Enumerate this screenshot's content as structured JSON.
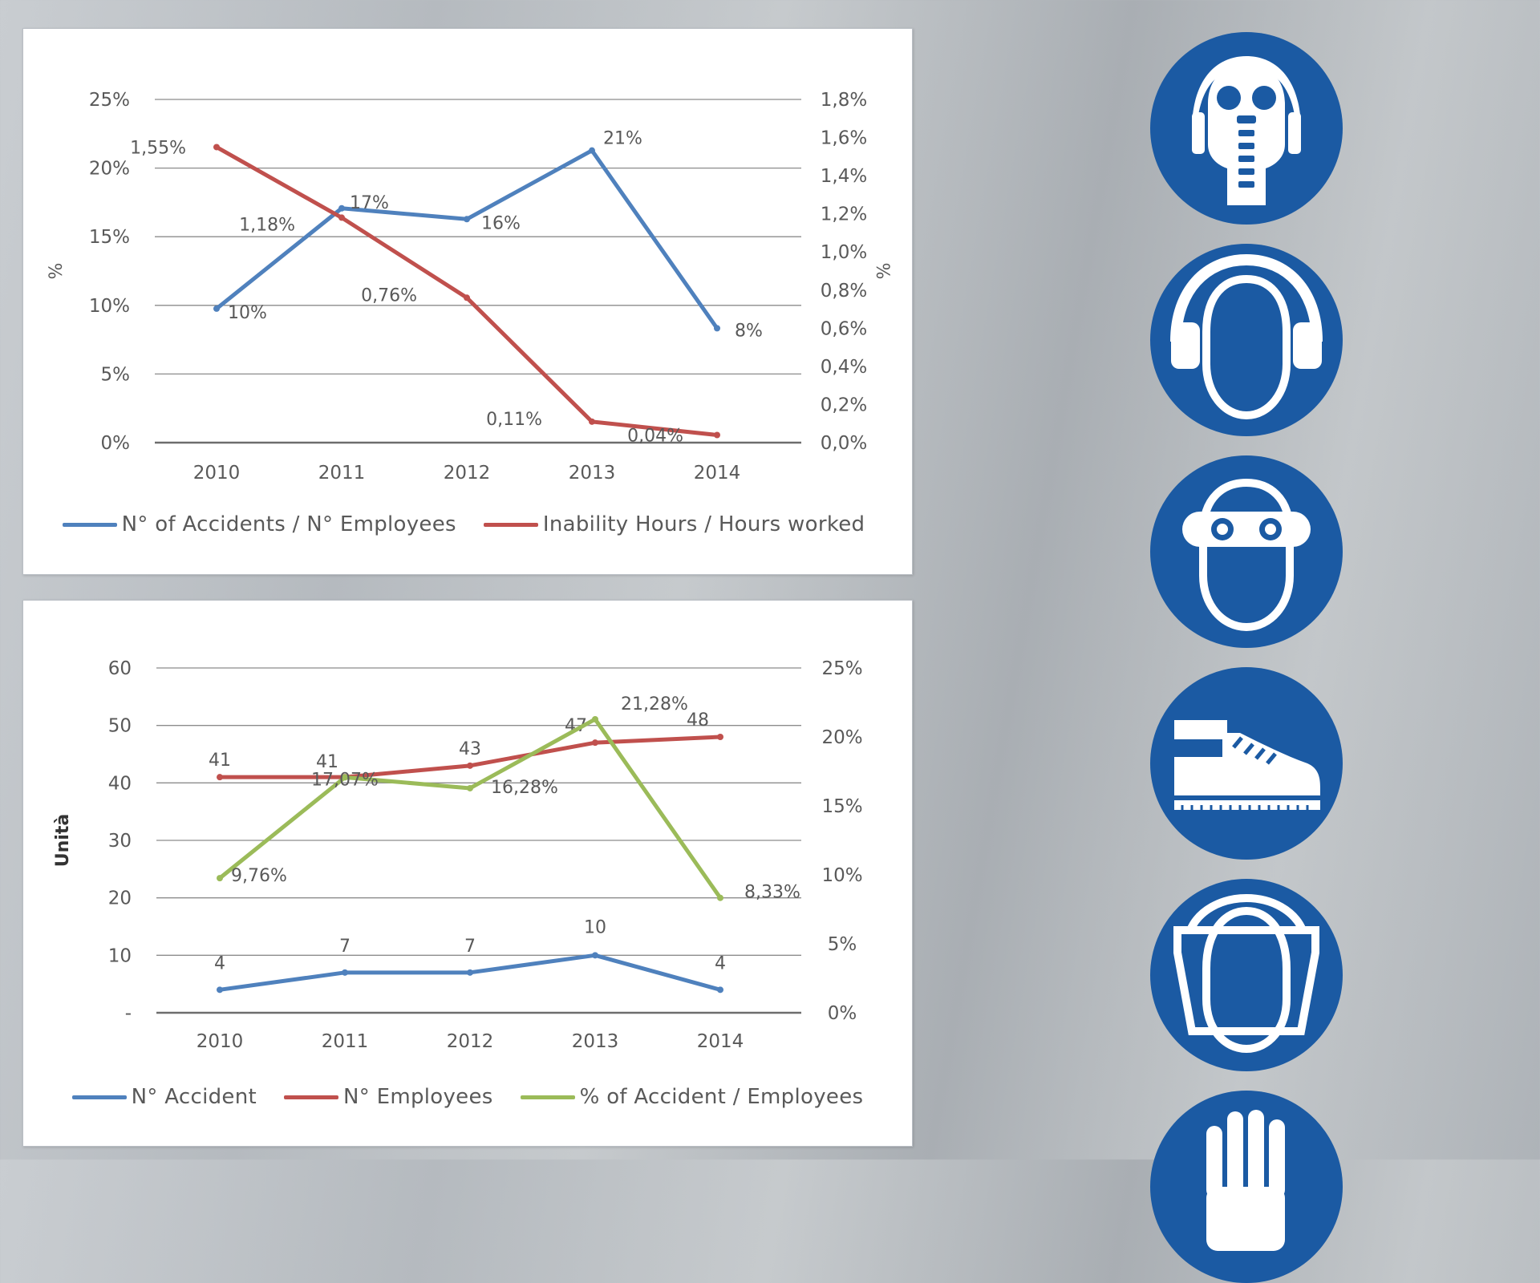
{
  "colors": {
    "blue": "#4f81bd",
    "red": "#c0504d",
    "green": "#9bbb59",
    "sign_blue": "#1b5aa3",
    "grid": "#8c8c8c",
    "text": "#595959"
  },
  "chart_data": [
    {
      "type": "line",
      "x": [
        "2010",
        "2011",
        "2012",
        "2013",
        "2014"
      ],
      "ylabel": "%",
      "ylabel_right": "%",
      "y_ticks_left": [
        "25%",
        "20%",
        "15%",
        "10%",
        "5%",
        "0%"
      ],
      "y_ticks_right": [
        "1,8%",
        "1,6%",
        "1,4%",
        "1,2%",
        "1,0%",
        "0,8%",
        "0,6%",
        "0,4%",
        "0,2%",
        "0,0%"
      ],
      "ylim": [
        0,
        25
      ],
      "ylim_right": [
        0,
        1.8
      ],
      "grid": true,
      "legend_position": "bottom",
      "series": [
        {
          "name": "N° of Accidents /  N° Employees",
          "axis": "left",
          "color": "#4f81bd",
          "values": [
            9.76,
            17.07,
            16.28,
            21.28,
            8.33
          ],
          "labels": [
            "10%",
            "17%",
            "16%",
            "21%",
            "8%"
          ]
        },
        {
          "name": "Inability Hours / Hours worked",
          "axis": "right",
          "color": "#c0504d",
          "values": [
            1.55,
            1.18,
            0.76,
            0.11,
            0.04
          ],
          "labels": [
            "1,55%",
            "1,18%",
            "0,76%",
            "0,11%",
            "0,04%"
          ]
        }
      ]
    },
    {
      "type": "line",
      "x": [
        "2010",
        "2011",
        "2012",
        "2013",
        "2014"
      ],
      "ylabel": "Unità",
      "y_ticks_left": [
        "60",
        "50",
        "40",
        "30",
        "20",
        "10",
        "-"
      ],
      "y_ticks_right": [
        "25%",
        "20%",
        "15%",
        "10%",
        "5%",
        "0%"
      ],
      "ylim": [
        0,
        60
      ],
      "ylim_right": [
        0,
        25
      ],
      "grid": true,
      "legend_position": "bottom",
      "series": [
        {
          "name": "N° Accident",
          "axis": "left",
          "color": "#4f81bd",
          "values": [
            4,
            7,
            7,
            10,
            4
          ],
          "labels": [
            "4",
            "7",
            "7",
            "10",
            "4"
          ]
        },
        {
          "name": "N° Employees",
          "axis": "left",
          "color": "#c0504d",
          "values": [
            41,
            41,
            43,
            47,
            48
          ],
          "labels": [
            "41",
            "41",
            "43",
            "47",
            "48"
          ]
        },
        {
          "name": "% of Accident / Employees",
          "axis": "right",
          "color": "#9bbb59",
          "values": [
            9.76,
            17.07,
            16.28,
            21.28,
            8.33
          ],
          "labels": [
            "9,76%",
            "17,07%",
            "16,28%",
            "21,28%",
            "8,33%"
          ]
        }
      ]
    }
  ],
  "safety_signs": [
    {
      "icon": "respirator-mask-icon"
    },
    {
      "icon": "ear-protection-icon"
    },
    {
      "icon": "safety-goggles-icon"
    },
    {
      "icon": "safety-boots-icon"
    },
    {
      "icon": "face-shield-icon"
    },
    {
      "icon": "protective-gloves-icon"
    }
  ]
}
